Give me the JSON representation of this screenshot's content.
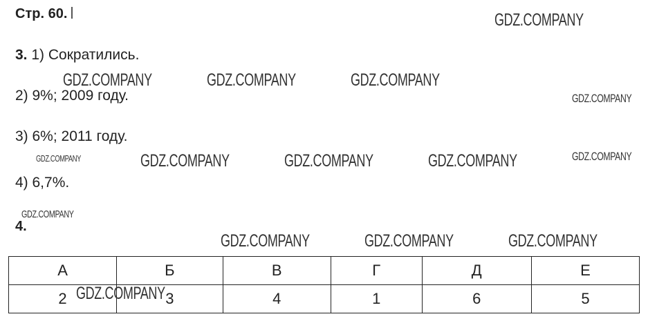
{
  "page_label": "Стр. 60.",
  "task3": {
    "number": "3.",
    "answers": [
      "1) Сократились.",
      "2) 9%; 2009 году.",
      "3) 6%; 2011 году.",
      "4) 6,7%."
    ]
  },
  "task4": {
    "number": "4.",
    "headers": [
      "А",
      "Б",
      "В",
      "Г",
      "Д",
      "Е"
    ],
    "values": [
      "2",
      "3",
      "4",
      "1",
      "6",
      "5"
    ]
  },
  "watermark": "GDZ.COMPANY"
}
